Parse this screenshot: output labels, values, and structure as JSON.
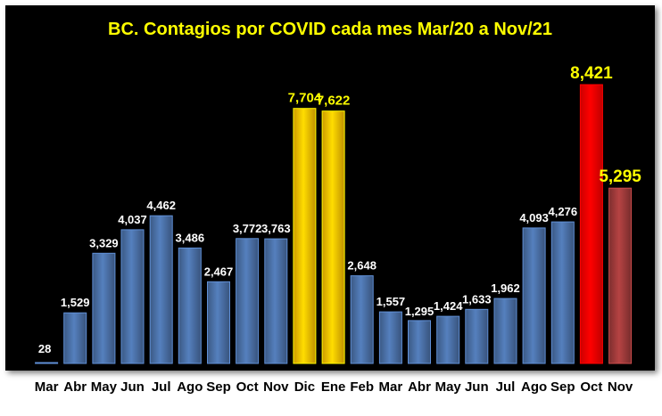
{
  "chart_data": {
    "type": "bar",
    "title": "BC. Contagios por COVID cada mes Mar/20 a Nov/21",
    "xlabel": "",
    "ylabel": "",
    "ylim": [
      0,
      9000
    ],
    "grid": false,
    "categories": [
      "Mar",
      "Abr",
      "May",
      "Jun",
      "Jul",
      "Ago",
      "Sep",
      "Oct",
      "Nov",
      "Dic",
      "Ene",
      "Feb",
      "Mar",
      "Abr",
      "May",
      "Jun",
      "Jul",
      "Ago",
      "Sep",
      "Oct",
      "Nov"
    ],
    "values": [
      28,
      1529,
      3329,
      4037,
      4462,
      3486,
      2467,
      3772,
      3763,
      7704,
      7622,
      2648,
      1557,
      1295,
      1424,
      1633,
      1962,
      4093,
      4276,
      8421,
      5295
    ],
    "data_labels": [
      "28",
      "1,529",
      "3,329",
      "4,037",
      "4,462",
      "3,486",
      "2,467",
      "3,772",
      "3,763",
      "7,704",
      "7,622",
      "2,648",
      "1,557",
      "1,295",
      "1,424",
      "1,633",
      "1,962",
      "4,093",
      "4,276",
      "8,421",
      "5,295"
    ],
    "bar_colors": [
      "#4a6fa5",
      "#4a6fa5",
      "#4a6fa5",
      "#4a6fa5",
      "#4a6fa5",
      "#4a6fa5",
      "#4a6fa5",
      "#4a6fa5",
      "#4a6fa5",
      "#ffc000",
      "#ffc000",
      "#4a6fa5",
      "#4a6fa5",
      "#4a6fa5",
      "#4a6fa5",
      "#4a6fa5",
      "#4a6fa5",
      "#4a6fa5",
      "#4a6fa5",
      "#ff0000",
      "#9e3a3a"
    ],
    "label_colors": [
      "#ffffff",
      "#ffffff",
      "#ffffff",
      "#ffffff",
      "#ffffff",
      "#ffffff",
      "#ffffff",
      "#ffffff",
      "#ffffff",
      "#ffff00",
      "#ffff00",
      "#ffffff",
      "#ffffff",
      "#ffffff",
      "#ffffff",
      "#ffffff",
      "#ffffff",
      "#ffffff",
      "#ffffff",
      "#ffff00",
      "#ffff00"
    ]
  },
  "colors": {
    "plot_background": "#000000",
    "title": "#ffff00",
    "tick_labels": "#000000"
  }
}
